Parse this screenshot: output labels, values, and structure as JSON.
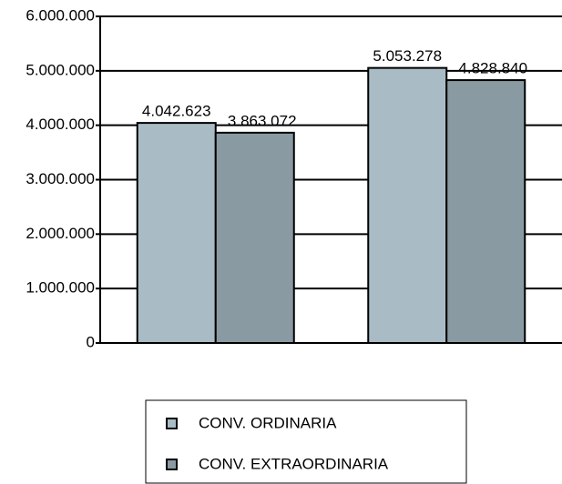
{
  "chart_data": {
    "type": "bar",
    "categories": [
      null,
      null
    ],
    "series": [
      {
        "name": "CONV. ORDINARIA",
        "color": "#a9bcc6",
        "values": [
          4042623,
          5053278
        ],
        "value_labels": [
          "4.042.623",
          "5.053.278"
        ]
      },
      {
        "name": "CONV. EXTRAORDINARIA",
        "color": "#8a9aa3",
        "values": [
          3863072,
          4828840
        ],
        "value_labels": [
          "3.863.072",
          "4.828.840"
        ]
      }
    ],
    "ylim": [
      0,
      6000000
    ],
    "yticks": [
      0,
      {
        "value": 1000000,
        "label": "1.000.000"
      },
      {
        "value": 2000000,
        "label": "2.000.000"
      },
      {
        "value": 3000000,
        "label": "3.000.000"
      },
      {
        "value": 4000000,
        "label": "4.000.000"
      },
      {
        "value": 5000000,
        "label": "5.000.000"
      },
      {
        "value": 6000000,
        "label": "6.000.000"
      }
    ],
    "grid": true,
    "legend": "bottom"
  }
}
